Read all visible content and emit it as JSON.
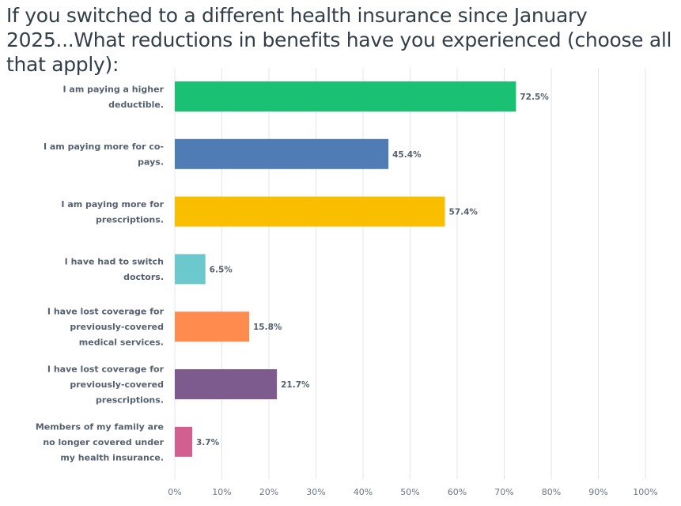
{
  "chart_data": {
    "type": "bar",
    "orientation": "horizontal",
    "title": "If you switched to a different health insurance since January 2025...What reductions in benefits have you experienced (choose all that apply):",
    "categories": [
      [
        "I am paying a higher",
        "deductible."
      ],
      [
        "I am paying more for co-",
        "pays."
      ],
      [
        "I am paying more for",
        "prescriptions."
      ],
      [
        "I have had to switch",
        "doctors."
      ],
      [
        "I have lost coverage for",
        "previously-covered",
        "medical services."
      ],
      [
        "I have lost coverage for",
        "previously-covered",
        "prescriptions."
      ],
      [
        "Members of my family are",
        "no longer covered under",
        "my health insurance."
      ]
    ],
    "values": [
      72.5,
      45.4,
      57.4,
      6.5,
      15.8,
      21.7,
      3.7
    ],
    "value_labels": [
      "72.5%",
      "45.4%",
      "57.4%",
      "6.5%",
      "15.8%",
      "21.7%",
      "3.7%"
    ],
    "colors": [
      "#1bc172",
      "#507cb6",
      "#f9be00",
      "#6bc8cd",
      "#ff8b4f",
      "#7d5b8f",
      "#d25f90"
    ],
    "xlim": [
      0,
      100
    ],
    "xticks": [
      "0%",
      "10%",
      "20%",
      "30%",
      "40%",
      "50%",
      "60%",
      "70%",
      "80%",
      "90%",
      "100%"
    ],
    "grid": true
  }
}
